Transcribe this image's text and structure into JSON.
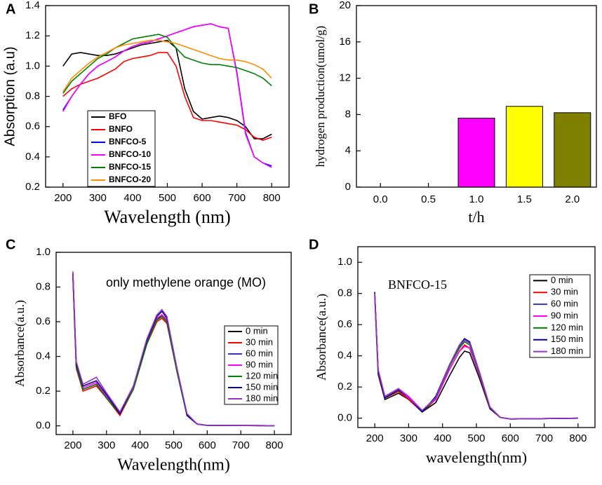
{
  "chart_data": [
    {
      "type": "line",
      "label": "A",
      "xlabel": "Wavelength (nm)",
      "ylabel": "Absorption (a.u)",
      "xlim": [
        150,
        850
      ],
      "xticks": [
        200,
        300,
        400,
        500,
        600,
        700,
        800
      ],
      "ylim": [
        0.2,
        1.4
      ],
      "yticks": [
        0.2,
        0.4,
        0.6,
        0.8,
        {
          "value": 1.0,
          "label": "1.0"
        },
        1.2,
        1.4
      ],
      "legend": "lower left",
      "x": [
        200,
        225,
        250,
        275,
        300,
        325,
        350,
        375,
        400,
        425,
        450,
        475,
        500,
        525,
        550,
        575,
        600,
        625,
        650,
        675,
        700,
        725,
        750,
        775,
        800
      ],
      "series": [
        {
          "name": "BFO",
          "color": "#000000",
          "values": [
            1.0,
            1.08,
            1.09,
            1.08,
            1.07,
            1.07,
            1.08,
            1.1,
            1.12,
            1.14,
            1.15,
            1.16,
            1.17,
            1.12,
            0.85,
            0.7,
            0.65,
            0.66,
            0.67,
            0.66,
            0.64,
            0.6,
            0.52,
            0.52,
            0.55
          ]
        },
        {
          "name": "BNFO",
          "color": "#ff0000",
          "values": [
            0.8,
            0.85,
            0.88,
            0.9,
            0.92,
            0.95,
            0.98,
            1.03,
            1.05,
            1.06,
            1.07,
            1.09,
            1.09,
            1.0,
            0.8,
            0.66,
            0.64,
            0.64,
            0.63,
            0.62,
            0.61,
            0.58,
            0.53,
            0.51,
            0.53
          ]
        },
        {
          "name": "BNFCO-5",
          "color": "#0000ff",
          "values": [
            0.71,
            0.8,
            0.88,
            0.95,
            1.0,
            1.03,
            1.06,
            1.1,
            1.13,
            1.15,
            1.16,
            1.18,
            1.2,
            1.22,
            1.24,
            1.26,
            1.27,
            1.28,
            1.26,
            1.25,
            0.96,
            0.56,
            0.4,
            0.36,
            0.34
          ]
        },
        {
          "name": "BNFCO-10",
          "color": "#ff00ff",
          "values": [
            0.7,
            0.8,
            0.88,
            0.95,
            1.0,
            1.03,
            1.06,
            1.1,
            1.13,
            1.15,
            1.16,
            1.18,
            1.2,
            1.22,
            1.24,
            1.26,
            1.27,
            1.28,
            1.26,
            1.25,
            0.95,
            0.55,
            0.4,
            0.36,
            0.33
          ]
        },
        {
          "name": "BNFCO-15",
          "color": "#008000",
          "values": [
            0.82,
            0.9,
            0.95,
            1.0,
            1.05,
            1.08,
            1.12,
            1.15,
            1.18,
            1.19,
            1.2,
            1.21,
            1.19,
            1.12,
            1.06,
            1.04,
            1.02,
            1.01,
            1.01,
            1.0,
            0.99,
            0.97,
            0.95,
            0.92,
            0.87
          ]
        },
        {
          "name": "BNFCO-20",
          "color": "#ff8c00",
          "values": [
            0.83,
            0.92,
            0.97,
            1.02,
            1.06,
            1.09,
            1.12,
            1.14,
            1.15,
            1.16,
            1.17,
            1.17,
            1.16,
            1.15,
            1.13,
            1.11,
            1.09,
            1.07,
            1.05,
            1.04,
            1.04,
            1.03,
            1.01,
            0.98,
            0.92
          ]
        }
      ]
    },
    {
      "type": "bar",
      "label": "B",
      "xlabel": "t/h",
      "ylabel": "hydrogen production(umol/g)",
      "categories": [
        "0.0",
        "0.5",
        "1.0",
        "1.5",
        "2.0"
      ],
      "values": [
        0,
        0,
        7.6,
        8.9,
        8.2
      ],
      "colors": [
        "#ff00ff",
        "#ff00ff",
        "#ff00ff",
        "#ffff00",
        "#808000"
      ],
      "ylim": [
        0,
        20
      ],
      "yticks": [
        0,
        4,
        8,
        12,
        16,
        20
      ]
    },
    {
      "type": "line",
      "label": "C",
      "xlabel": "Wavelength(nm)",
      "ylabel": "Absorbance(a.u.)",
      "annotation": "only methylene orange (MO)",
      "xlim": [
        150,
        850
      ],
      "xticks": [
        200,
        300,
        400,
        500,
        600,
        700,
        800
      ],
      "ylim": [
        -0.05,
        1.0
      ],
      "yticks": [
        {
          "value": 0.0,
          "label": "0.0"
        },
        0.2,
        0.4,
        0.6,
        0.8,
        {
          "value": 1.0,
          "label": "1.0"
        }
      ],
      "legend": "center right",
      "x": [
        200,
        210,
        230,
        270,
        300,
        340,
        380,
        420,
        450,
        465,
        480,
        510,
        540,
        570,
        600,
        800
      ],
      "series": [
        {
          "name": "0 min",
          "color": "#000000",
          "values": [
            0.87,
            0.34,
            0.21,
            0.24,
            0.16,
            0.07,
            0.22,
            0.48,
            0.61,
            0.64,
            0.61,
            0.32,
            0.06,
            0.01,
            0.003,
            0.001
          ]
        },
        {
          "name": "30 min",
          "color": "#ff0000",
          "values": [
            0.86,
            0.33,
            0.2,
            0.23,
            0.16,
            0.06,
            0.21,
            0.47,
            0.6,
            0.62,
            0.59,
            0.31,
            0.06,
            0.01,
            0.003,
            0.001
          ]
        },
        {
          "name": "60 min",
          "color": "#3333cc",
          "values": [
            0.87,
            0.34,
            0.21,
            0.24,
            0.16,
            0.07,
            0.22,
            0.48,
            0.61,
            0.63,
            0.6,
            0.32,
            0.06,
            0.01,
            0.003,
            0.001
          ]
        },
        {
          "name": "90 min",
          "color": "#ff00ff",
          "values": [
            0.88,
            0.35,
            0.22,
            0.25,
            0.17,
            0.07,
            0.22,
            0.48,
            0.62,
            0.64,
            0.61,
            0.32,
            0.06,
            0.01,
            0.003,
            0.001
          ]
        },
        {
          "name": "120 min",
          "color": "#008000",
          "values": [
            0.86,
            0.34,
            0.21,
            0.24,
            0.16,
            0.07,
            0.21,
            0.47,
            0.61,
            0.63,
            0.6,
            0.31,
            0.06,
            0.01,
            0.003,
            0.001
          ]
        },
        {
          "name": "150 min",
          "color": "#000080",
          "values": [
            0.88,
            0.36,
            0.23,
            0.26,
            0.18,
            0.07,
            0.23,
            0.49,
            0.63,
            0.66,
            0.62,
            0.33,
            0.06,
            0.01,
            0.003,
            0.001
          ]
        },
        {
          "name": "180 min",
          "color": "#9933cc",
          "values": [
            0.89,
            0.37,
            0.24,
            0.28,
            0.19,
            0.08,
            0.23,
            0.5,
            0.64,
            0.67,
            0.63,
            0.33,
            0.07,
            0.01,
            0.003,
            0.001
          ]
        }
      ]
    },
    {
      "type": "line",
      "label": "D",
      "xlabel": "wavelength(nm)",
      "ylabel": "Absorbance(a.u.)",
      "annotation": "BNFCO-15",
      "xlim": [
        150,
        850
      ],
      "xticks": [
        200,
        300,
        400,
        500,
        600,
        700,
        800
      ],
      "ylim": [
        -0.06,
        1.1
      ],
      "yticks": [
        {
          "value": 0.0,
          "label": "0.0"
        },
        0.2,
        0.4,
        0.6,
        0.8,
        {
          "value": 1.0,
          "label": "1.0"
        }
      ],
      "legend": "upper right",
      "x": [
        200,
        210,
        230,
        270,
        300,
        340,
        380,
        420,
        450,
        465,
        480,
        510,
        540,
        570,
        600,
        800
      ],
      "series": [
        {
          "name": "0 min",
          "color": "#000000",
          "values": [
            0.78,
            0.28,
            0.12,
            0.16,
            0.12,
            0.04,
            0.1,
            0.27,
            0.39,
            0.43,
            0.42,
            0.25,
            0.06,
            0.005,
            -0.005,
            0.0
          ]
        },
        {
          "name": "30 min",
          "color": "#ff0000",
          "values": [
            0.79,
            0.29,
            0.13,
            0.17,
            0.12,
            0.04,
            0.12,
            0.31,
            0.43,
            0.47,
            0.45,
            0.27,
            0.07,
            0.005,
            -0.005,
            0.0
          ]
        },
        {
          "name": "60 min",
          "color": "#3333cc",
          "values": [
            0.8,
            0.3,
            0.13,
            0.18,
            0.13,
            0.04,
            0.13,
            0.33,
            0.46,
            0.5,
            0.48,
            0.28,
            0.07,
            0.005,
            -0.005,
            0.0
          ]
        },
        {
          "name": "90 min",
          "color": "#ff00ff",
          "values": [
            0.8,
            0.31,
            0.14,
            0.19,
            0.14,
            0.05,
            0.12,
            0.31,
            0.43,
            0.46,
            0.45,
            0.27,
            0.07,
            0.005,
            -0.005,
            0.0
          ]
        },
        {
          "name": "120 min",
          "color": "#008000",
          "values": [
            0.8,
            0.3,
            0.13,
            0.18,
            0.13,
            0.04,
            0.13,
            0.33,
            0.45,
            0.49,
            0.47,
            0.28,
            0.07,
            0.005,
            -0.005,
            0.0
          ]
        },
        {
          "name": "150 min",
          "color": "#000080",
          "values": [
            0.81,
            0.3,
            0.13,
            0.18,
            0.13,
            0.04,
            0.14,
            0.34,
            0.47,
            0.51,
            0.49,
            0.29,
            0.07,
            0.005,
            -0.005,
            0.0
          ]
        },
        {
          "name": "180 min",
          "color": "#9933cc",
          "values": [
            0.8,
            0.31,
            0.14,
            0.19,
            0.13,
            0.05,
            0.13,
            0.34,
            0.47,
            0.5,
            0.48,
            0.29,
            0.07,
            0.005,
            -0.005,
            0.0
          ]
        }
      ]
    }
  ]
}
